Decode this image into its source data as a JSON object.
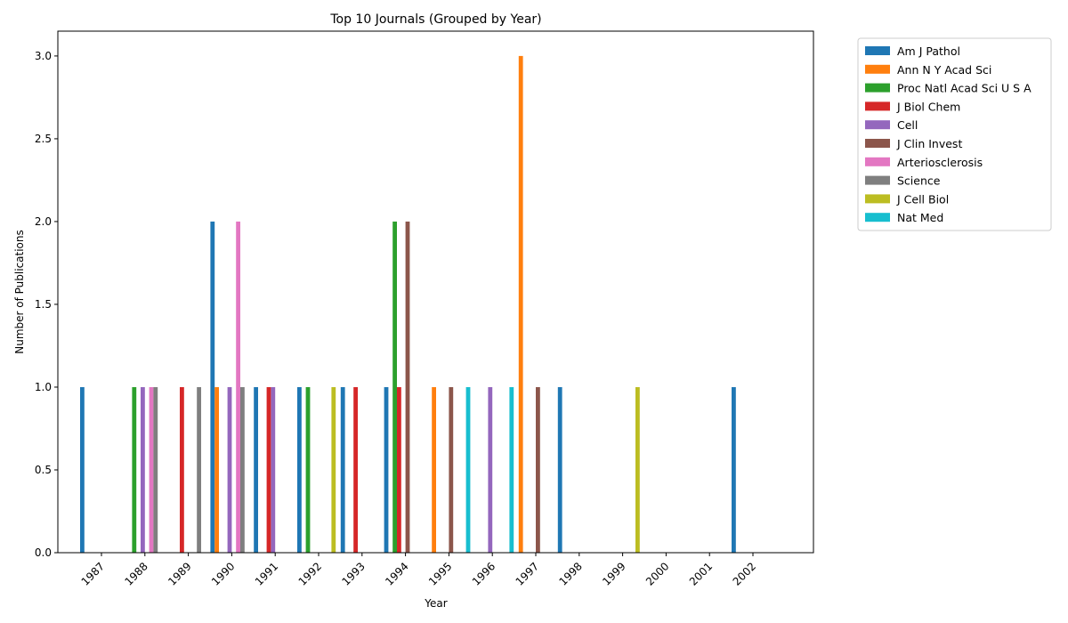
{
  "chart_data": {
    "type": "bar",
    "title": "Top 10 Journals (Grouped by Year)",
    "xlabel": "Year",
    "ylabel": "Number of Publications",
    "ylim": [
      0,
      3.15
    ],
    "yticks": [
      0.0,
      0.5,
      1.0,
      1.5,
      2.0,
      2.5,
      3.0
    ],
    "ytick_labels": [
      "0.0",
      "0.5",
      "1.0",
      "1.5",
      "2.0",
      "2.5",
      "3.0"
    ],
    "grid": false,
    "legend_position": "outside-top-right",
    "categories": [
      "1987",
      "1988",
      "1989",
      "1990",
      "1991",
      "1992",
      "1993",
      "1994",
      "1995",
      "1996",
      "1997",
      "1998",
      "1999",
      "2000",
      "2001",
      "2002"
    ],
    "series": [
      {
        "name": "Am J Pathol",
        "color": "#1f77b4",
        "values": [
          1,
          0,
          0,
          2,
          1,
          1,
          1,
          1,
          0,
          0,
          0,
          1,
          0,
          0,
          0,
          1
        ]
      },
      {
        "name": "Ann N Y Acad Sci",
        "color": "#ff7f0e",
        "values": [
          0,
          0,
          0,
          1,
          0,
          0,
          0,
          0,
          1,
          0,
          3,
          0,
          0,
          0,
          0,
          0
        ]
      },
      {
        "name": "Proc Natl Acad Sci U S A",
        "color": "#2ca02c",
        "values": [
          0,
          1,
          0,
          0,
          0,
          1,
          0,
          2,
          0,
          0,
          0,
          0,
          0,
          0,
          0,
          0
        ]
      },
      {
        "name": "J Biol Chem",
        "color": "#d62728",
        "values": [
          0,
          0,
          1,
          0,
          1,
          0,
          1,
          1,
          0,
          0,
          0,
          0,
          0,
          0,
          0,
          0
        ]
      },
      {
        "name": "Cell",
        "color": "#9467bd",
        "values": [
          0,
          1,
          0,
          1,
          1,
          0,
          0,
          0,
          0,
          1,
          0,
          0,
          0,
          0,
          0,
          0
        ]
      },
      {
        "name": "J Clin Invest",
        "color": "#8c564b",
        "values": [
          0,
          0,
          0,
          0,
          0,
          0,
          0,
          2,
          1,
          0,
          1,
          0,
          0,
          0,
          0,
          0
        ]
      },
      {
        "name": "Arteriosclerosis",
        "color": "#e377c2",
        "values": [
          0,
          1,
          0,
          2,
          0,
          0,
          0,
          0,
          0,
          0,
          0,
          0,
          0,
          0,
          0,
          0
        ]
      },
      {
        "name": "Science",
        "color": "#7f7f7f",
        "values": [
          0,
          1,
          1,
          1,
          0,
          0,
          0,
          0,
          0,
          0,
          0,
          0,
          0,
          0,
          0,
          0
        ]
      },
      {
        "name": "J Cell Biol",
        "color": "#bcbd22",
        "values": [
          0,
          0,
          0,
          0,
          0,
          1,
          0,
          0,
          0,
          0,
          0,
          0,
          1,
          0,
          0,
          0
        ]
      },
      {
        "name": "Nat Med",
        "color": "#17becf",
        "values": [
          0,
          0,
          0,
          0,
          0,
          0,
          0,
          0,
          1,
          1,
          0,
          0,
          0,
          0,
          0,
          0
        ]
      }
    ]
  }
}
